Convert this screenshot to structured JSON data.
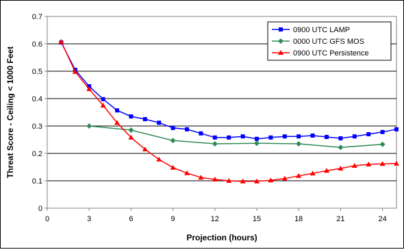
{
  "chart_data": {
    "type": "line",
    "title": "",
    "xlabel": "Projection (hours)",
    "ylabel": "Threat Score - Ceiling < 1000 Feet",
    "xlim": [
      0,
      25
    ],
    "ylim": [
      0,
      0.7
    ],
    "xticks": [
      0,
      3,
      6,
      9,
      12,
      15,
      18,
      21,
      24
    ],
    "yticks": [
      0,
      0.1,
      0.2,
      0.3,
      0.4,
      0.5,
      0.6,
      0.7
    ],
    "xtick_labels": [
      "0",
      "3",
      "6",
      "9",
      "12",
      "15",
      "18",
      "21",
      "24"
    ],
    "ytick_labels": [
      "0",
      "0.1",
      "0.2",
      "0.3",
      "0.4",
      "0.5",
      "0.6",
      "0.7"
    ],
    "grid": "horizontal",
    "legend_position": "top-right",
    "series": [
      {
        "name": "0900 UTC LAMP",
        "color": "#0000ff",
        "marker": "square",
        "x": [
          1,
          2,
          3,
          4,
          5,
          6,
          7,
          8,
          9,
          10,
          11,
          12,
          13,
          14,
          15,
          16,
          17,
          18,
          19,
          20,
          21,
          22,
          23,
          24,
          25
        ],
        "y": [
          0.605,
          0.505,
          0.445,
          0.398,
          0.357,
          0.335,
          0.325,
          0.312,
          0.293,
          0.288,
          0.273,
          0.258,
          0.258,
          0.262,
          0.253,
          0.258,
          0.262,
          0.262,
          0.265,
          0.26,
          0.255,
          0.262,
          0.27,
          0.278,
          0.288
        ]
      },
      {
        "name": "0000 UTC GFS MOS",
        "color": "#2e8b57",
        "marker": "diamond",
        "x": [
          3,
          6,
          9,
          12,
          15,
          18,
          21,
          24
        ],
        "y": [
          0.3,
          0.285,
          0.247,
          0.235,
          0.237,
          0.235,
          0.222,
          0.233
        ]
      },
      {
        "name": "0900 UTC Persistence",
        "color": "#ff0000",
        "marker": "triangle",
        "x": [
          1,
          2,
          3,
          4,
          5,
          6,
          7,
          8,
          9,
          10,
          11,
          12,
          13,
          14,
          15,
          16,
          17,
          18,
          19,
          20,
          21,
          22,
          23,
          24,
          25
        ],
        "y": [
          0.608,
          0.498,
          0.435,
          0.375,
          0.312,
          0.258,
          0.215,
          0.178,
          0.148,
          0.128,
          0.112,
          0.105,
          0.1,
          0.098,
          0.098,
          0.102,
          0.108,
          0.118,
          0.127,
          0.137,
          0.145,
          0.155,
          0.16,
          0.162,
          0.163
        ]
      }
    ]
  }
}
